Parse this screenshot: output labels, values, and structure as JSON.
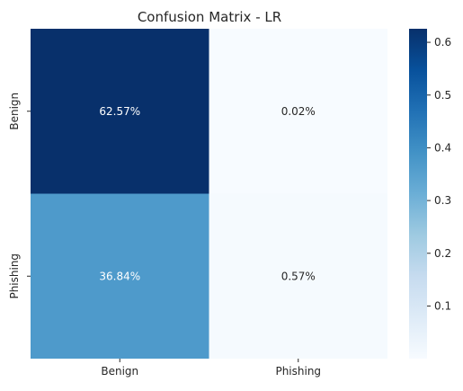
{
  "chart_data": {
    "type": "heatmap",
    "title": "Confusion Matrix - LR",
    "xlabel": "",
    "ylabel": "",
    "x_categories": [
      "Benign",
      "Phishing"
    ],
    "y_categories": [
      "Benign",
      "Phishing"
    ],
    "values": [
      [
        0.6257,
        0.0002
      ],
      [
        0.3684,
        0.0057
      ]
    ],
    "annotations": [
      [
        "62.57%",
        "0.02%"
      ],
      [
        "36.84%",
        "0.57%"
      ]
    ],
    "colormap": "Blues",
    "colorbar": {
      "min": 0.0002,
      "max": 0.6257,
      "ticks": [
        "0.1",
        "0.2",
        "0.3",
        "0.4",
        "0.5",
        "0.6"
      ]
    },
    "colors": {
      "high": "#08306b",
      "mid": "#4a9dce",
      "low": "#f7fbff",
      "text_dark": "#262626",
      "text_light": "#ffffff"
    }
  }
}
